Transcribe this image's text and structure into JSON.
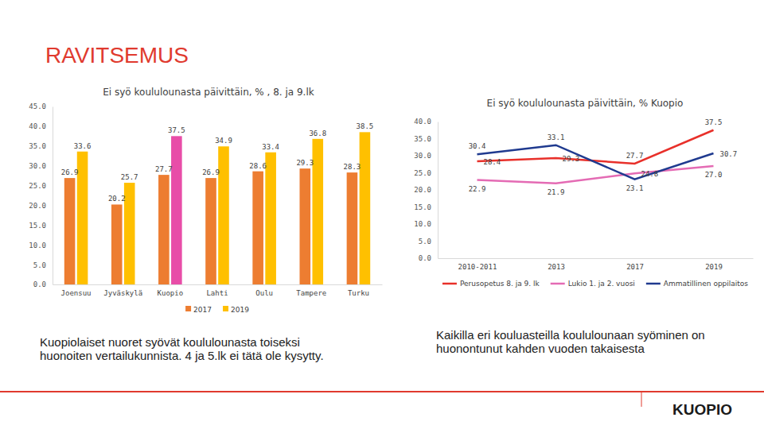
{
  "page": {
    "title": "RAVITSEMUS",
    "captions": [
      "Kuopiolaiset nuoret syövät koululounasta toiseksi huonoiten vertailukunnista. 4 ja 5.lk ei tätä ole kysytty.",
      "Kaikilla eri kouluasteilla koululounaan syöminen on huonontunut kahden vuoden takaisesta"
    ],
    "logo": "KUOPIO"
  },
  "chart_data": [
    {
      "type": "bar",
      "title": "Ei syö koululounasta päivittäin, % , 8. ja 9.lk",
      "categories": [
        "Joensuu",
        "Jyväskylä",
        "Kuopio",
        "Lahti",
        "Oulu",
        "Tampere",
        "Turku"
      ],
      "series": [
        {
          "name": "2017",
          "color": "#ED7D31",
          "values": [
            26.9,
            20.2,
            27.7,
            26.9,
            28.6,
            29.3,
            28.3
          ]
        },
        {
          "name": "2019",
          "color": "#FFC000",
          "colors": [
            "#FFC000",
            "#FFC000",
            "#E84DA8",
            "#FFC000",
            "#FFC000",
            "#FFC000",
            "#FFC000"
          ],
          "values": [
            33.6,
            25.7,
            37.5,
            34.9,
            33.4,
            36.8,
            38.5
          ]
        }
      ],
      "ylim": [
        0,
        45
      ],
      "yticks": [
        {
          "value": 0,
          "label": "0.0"
        },
        {
          "value": 5,
          "label": "5.0"
        },
        {
          "value": 10,
          "label": "10.0"
        },
        {
          "value": 15,
          "label": "15.0"
        },
        {
          "value": 20,
          "label": "20.0"
        },
        {
          "value": 25,
          "label": "25.0"
        },
        {
          "value": 30,
          "label": "30.0"
        },
        {
          "value": 35,
          "label": "35.0"
        },
        {
          "value": 40,
          "label": "40.0"
        },
        {
          "value": 45,
          "label": "45.0"
        }
      ],
      "grid": false,
      "legend": "bottom",
      "data_labels": true
    },
    {
      "type": "line",
      "title": "Ei syö koululounasta päivittäin, % Kuopio",
      "categories": [
        "2010-2011",
        "2013",
        "2017",
        "2019"
      ],
      "series": [
        {
          "name": "Perusopetus 8. ja 9. lk",
          "color": "#E8302A",
          "values": [
            28.4,
            29.3,
            27.7,
            37.5
          ]
        },
        {
          "name": "Lukio 1. ja 2. vuosi",
          "color": "#E46BB4",
          "values": [
            22.9,
            21.9,
            24.8,
            27.0
          ],
          "value_labels": [
            "22.9",
            "21.9",
            "24.8",
            "27.0"
          ]
        },
        {
          "name": "Ammatillinen oppilaitos",
          "color": "#1F3A8F",
          "values": [
            30.4,
            33.1,
            23.1,
            30.7
          ]
        }
      ],
      "ylim": [
        0,
        40
      ],
      "yticks": [
        {
          "value": 0,
          "label": "0.0"
        },
        {
          "value": 5,
          "label": "5.0"
        },
        {
          "value": 10,
          "label": "10.0"
        },
        {
          "value": 15,
          "label": "15.0"
        },
        {
          "value": 20,
          "label": "20.0"
        },
        {
          "value": 25,
          "label": "25.0"
        },
        {
          "value": 30,
          "label": "30.0"
        },
        {
          "value": 35,
          "label": "35.0"
        },
        {
          "value": 40,
          "label": "40.0"
        }
      ],
      "grid": false,
      "legend": "bottom",
      "data_labels": true
    }
  ]
}
